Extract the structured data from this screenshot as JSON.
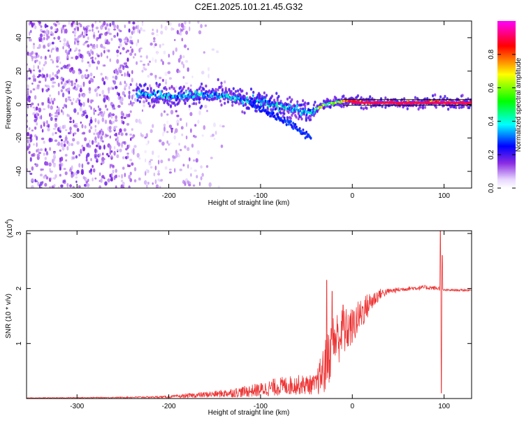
{
  "title": "C2E1.2025.101.21.45.G32",
  "chart_data": [
    {
      "type": "heatmap",
      "xlabel": "Height of straight line (km)",
      "ylabel": "Frequency (Hz)",
      "xlim": [
        -355,
        130
      ],
      "ylim": [
        -50,
        50
      ],
      "xticks": [
        -300,
        -200,
        -100,
        0,
        100
      ],
      "yticks": [
        -40,
        -20,
        0,
        20,
        40
      ],
      "colorbar": {
        "label": "Normalized spectral amplitude",
        "range": [
          0,
          1
        ],
        "ticks": [
          0.0,
          0.2,
          0.4,
          0.6,
          0.8
        ],
        "tick_labels": [
          "0.0",
          "0.2",
          "0.4",
          "0.6",
          "0.8"
        ],
        "colormap": [
          "#ffffff",
          "#8a2be2",
          "#0000ff",
          "#00ffff",
          "#00ff00",
          "#ffff00",
          "#ff0000",
          "#ff00ff"
        ]
      },
      "ridge": {
        "x": [
          -235,
          -220,
          -200,
          -180,
          -160,
          -140,
          -120,
          -100,
          -80,
          -60,
          -45,
          -40,
          -30,
          -20,
          -10,
          0,
          20,
          40,
          60,
          80,
          90,
          100,
          130
        ],
        "freq": [
          7,
          6,
          5,
          5,
          6,
          5,
          3,
          2,
          -1,
          -3,
          -5,
          -3,
          0,
          1,
          2,
          2,
          1,
          1,
          1,
          1,
          2,
          1,
          1
        ]
      },
      "lower_branch": {
        "x": [
          -110,
          -95,
          -80,
          -65,
          -55,
          -45
        ],
        "freq": [
          0,
          -4,
          -8,
          -12,
          -16,
          -20
        ]
      }
    },
    {
      "type": "line",
      "xlabel": "Height of straight line (km)",
      "ylabel": "SNR (10 * v/v)",
      "y_multiplier": "(x10",
      "y_multiplier_exp": "4",
      "y_multiplier_close": ")",
      "xlim": [
        -355,
        130
      ],
      "ylim": [
        0,
        3.05
      ],
      "xticks": [
        -300,
        -200,
        -100,
        0,
        100
      ],
      "yticks": [
        1,
        2,
        3
      ],
      "color": "#ee3333",
      "envelope": {
        "x": [
          -355,
          -250,
          -200,
          -180,
          -150,
          -120,
          -100,
          -80,
          -60,
          -40,
          -30,
          -20,
          -10,
          0,
          10,
          20,
          30,
          40,
          60,
          80,
          95,
          100,
          130
        ],
        "mean": [
          0.01,
          0.02,
          0.03,
          0.05,
          0.08,
          0.12,
          0.16,
          0.22,
          0.25,
          0.25,
          0.55,
          1.05,
          1.2,
          1.3,
          1.55,
          1.75,
          1.9,
          1.95,
          2.0,
          2.02,
          2.0,
          1.97,
          1.97
        ],
        "noise": [
          0.005,
          0.01,
          0.02,
          0.04,
          0.06,
          0.1,
          0.13,
          0.17,
          0.18,
          0.18,
          0.5,
          0.55,
          0.45,
          0.35,
          0.3,
          0.2,
          0.1,
          0.05,
          0.04,
          0.04,
          0.04,
          0.02,
          0.02
        ]
      },
      "spikes": [
        {
          "x": -28,
          "y": 2.15
        },
        {
          "x": -22,
          "y": 1.95
        },
        {
          "x": -10,
          "y": 1.7
        },
        {
          "x": 96,
          "y": 3.05
        },
        {
          "x": 97,
          "y": 0.1
        },
        {
          "x": 98,
          "y": 2.6
        }
      ]
    }
  ]
}
